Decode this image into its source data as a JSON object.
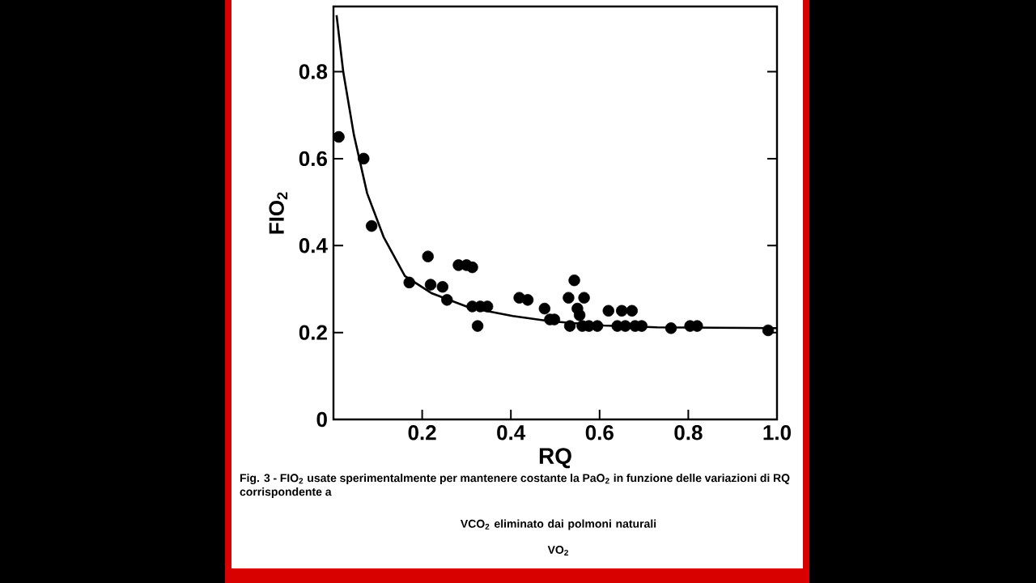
{
  "chart_data": {
    "type": "scatter",
    "xlabel": "RQ",
    "ylabel": "FIO$_{2}$",
    "xlim": [
      0,
      1.0
    ],
    "ylim": [
      0,
      0.95
    ],
    "xticks": [
      0.2,
      0.4,
      0.6,
      0.8,
      {
        "value": 1.0,
        "label": "1.0"
      }
    ],
    "yticks": [
      0,
      0.2,
      0.4,
      0.6,
      0.8
    ],
    "grid": false,
    "series": [
      {
        "color": "#000000",
        "marker": "circle",
        "x": [
          0.012,
          0.068,
          0.086,
          0.171,
          0.213,
          0.219,
          0.246,
          0.256,
          0.282,
          0.3,
          0.313,
          0.313,
          0.325,
          0.331,
          0.347,
          0.419,
          0.438,
          0.476,
          0.488,
          0.498,
          0.53,
          0.533,
          0.543,
          0.55,
          0.555,
          0.565,
          0.561,
          0.576,
          0.595,
          0.62,
          0.64,
          0.65,
          0.658,
          0.673,
          0.68,
          0.695,
          0.761,
          0.804,
          0.82,
          0.98
        ],
        "values": [
          0.65,
          0.6,
          0.445,
          0.315,
          0.375,
          0.31,
          0.305,
          0.275,
          0.355,
          0.355,
          0.35,
          0.26,
          0.215,
          0.26,
          0.26,
          0.28,
          0.275,
          0.255,
          0.23,
          0.23,
          0.28,
          0.215,
          0.32,
          0.255,
          0.24,
          0.28,
          0.215,
          0.215,
          0.215,
          0.25,
          0.215,
          0.25,
          0.215,
          0.25,
          0.215,
          0.215,
          0.21,
          0.215,
          0.215,
          0.205
        ]
      },
      {
        "type": "line",
        "color": "#000000",
        "marker": "none",
        "line_style": "solid",
        "x": [
          0.007,
          0.022,
          0.046,
          0.076,
          0.113,
          0.161,
          0.222,
          0.307,
          0.404,
          0.489,
          0.61,
          0.73,
          1.0
        ],
        "values": [
          0.93,
          0.8,
          0.655,
          0.52,
          0.42,
          0.33,
          0.29,
          0.257,
          0.238,
          0.226,
          0.216,
          0.212,
          0.21
        ]
      }
    ],
    "annotations": [
      "Fig. 3 - FIO$_{2}$ usate sperimentalmente per mantenere costante la PaO$_{2}$ in funzione delle variazioni di RQ corrispondente a",
      "VCO$_{2}$ eliminato dai polmoni naturali",
      "VO$_{2}$"
    ]
  }
}
